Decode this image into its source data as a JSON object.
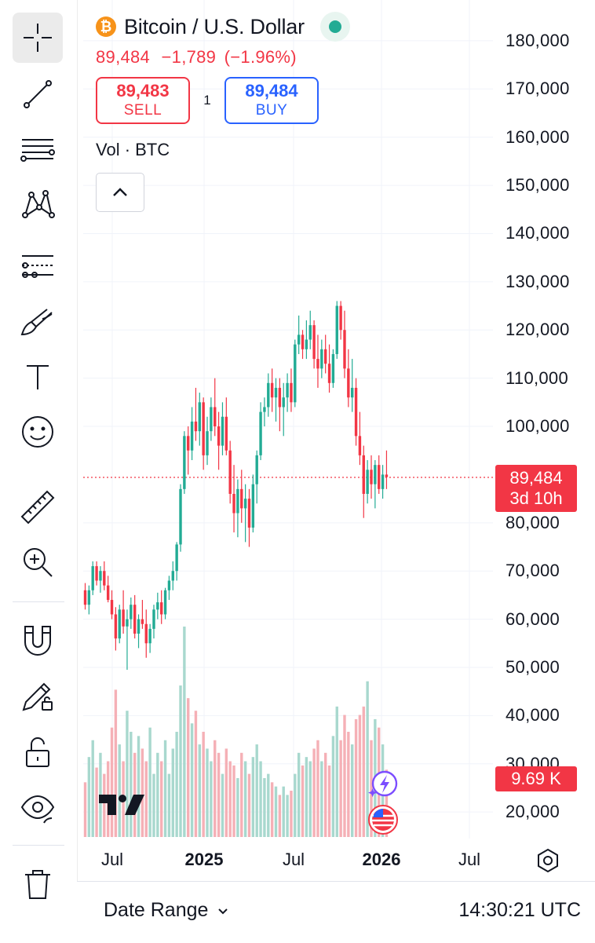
{
  "symbol": {
    "title": "Bitcoin / U.S. Dollar",
    "icon": "bitcoin-icon",
    "icon_glyph": "₿",
    "last_price": "89,484",
    "change": "−1,789",
    "change_pct": "(−1.96%)",
    "market_status": "open"
  },
  "trade": {
    "sell_price": "89,483",
    "sell_label": "SELL",
    "spread": "1",
    "buy_price": "89,484",
    "buy_label": "BUY"
  },
  "indicator": {
    "legend": "Vol · BTC"
  },
  "price_label": {
    "price": "89,484",
    "countdown": "3d 10h"
  },
  "volume_label": "9.69 K",
  "bottom_bar": {
    "date_range": "Date Range",
    "clock": "14:30:21 UTC"
  },
  "toolbar": {
    "tools": [
      "crosshair",
      "trend-line",
      "fib-retracement",
      "xabcd-pattern",
      "long-position",
      "brush",
      "text",
      "emoji",
      "ruler",
      "zoom-in",
      "magnet",
      "lock-drawings",
      "lock-all",
      "hide-drawings",
      "remove-drawings"
    ]
  },
  "colors": {
    "up": "#22ab94",
    "down": "#f23645",
    "buy": "#2962ff",
    "volume_up": "#a8d8ce",
    "volume_down": "#f5b0b6",
    "accent_purple": "#7c4dff"
  },
  "chart_data": {
    "type": "candlestick",
    "interval": "1W",
    "price_scale": {
      "ticks": [
        "180,000",
        "170,000",
        "160,000",
        "150,000",
        "140,000",
        "130,000",
        "120,000",
        "110,000",
        "100,000",
        "80,000",
        "70,000",
        "60,000",
        "50,000",
        "40,000",
        "30,000",
        "20,000"
      ],
      "range": [
        16000,
        183000
      ]
    },
    "time_axis": {
      "labels": [
        {
          "text": "Jul",
          "bold": false
        },
        {
          "text": "2025",
          "bold": true
        },
        {
          "text": "Jul",
          "bold": false
        },
        {
          "text": "2026",
          "bold": true
        },
        {
          "text": "Jul",
          "bold": false
        }
      ]
    },
    "last_price_line": 89484,
    "ohlc": [
      [
        66000,
        67500,
        62000,
        63000
      ],
      [
        63000,
        67000,
        61000,
        66000
      ],
      [
        66000,
        72000,
        65000,
        71000
      ],
      [
        71000,
        72000,
        67000,
        68000
      ],
      [
        68000,
        71000,
        65500,
        70000
      ],
      [
        70000,
        72000,
        66000,
        67000
      ],
      [
        67000,
        69000,
        63500,
        64000
      ],
      [
        64000,
        66000,
        60000,
        61000
      ],
      [
        61000,
        62500,
        53500,
        56000
      ],
      [
        56000,
        63000,
        55000,
        62000
      ],
      [
        62000,
        66000,
        57000,
        58500
      ],
      [
        58500,
        62000,
        49500,
        60000
      ],
      [
        60000,
        64500,
        58000,
        63000
      ],
      [
        63000,
        65000,
        56000,
        57000
      ],
      [
        57000,
        61000,
        54000,
        60000
      ],
      [
        60000,
        64000,
        58000,
        59000
      ],
      [
        59000,
        62000,
        52000,
        55000
      ],
      [
        55000,
        59000,
        53000,
        58000
      ],
      [
        58000,
        63000,
        56000,
        62000
      ],
      [
        62000,
        65500,
        60000,
        63500
      ],
      [
        63500,
        66000,
        59000,
        61000
      ],
      [
        61000,
        66500,
        60000,
        66000
      ],
      [
        66000,
        69000,
        64000,
        68000
      ],
      [
        68000,
        72000,
        66000,
        70000
      ],
      [
        70000,
        76000,
        68000,
        75500
      ],
      [
        75500,
        88000,
        74000,
        87000
      ],
      [
        87000,
        99000,
        86000,
        98000
      ],
      [
        98000,
        100000,
        90000,
        95000
      ],
      [
        95000,
        104000,
        93000,
        101000
      ],
      [
        101000,
        108000,
        97000,
        99000
      ],
      [
        99000,
        107000,
        96000,
        105000
      ],
      [
        105000,
        106000,
        91000,
        94000
      ],
      [
        94000,
        102000,
        92000,
        99000
      ],
      [
        99000,
        106000,
        97000,
        104000
      ],
      [
        104000,
        110000,
        98000,
        100000
      ],
      [
        100000,
        103000,
        91000,
        96000
      ],
      [
        96000,
        105000,
        94000,
        102000
      ],
      [
        102000,
        106000,
        94000,
        95000
      ],
      [
        95000,
        97000,
        84000,
        86000
      ],
      [
        86000,
        92000,
        78000,
        82000
      ],
      [
        82000,
        89000,
        77000,
        87000
      ],
      [
        87000,
        91000,
        80000,
        83000
      ],
      [
        83000,
        88000,
        76000,
        85000
      ],
      [
        85000,
        87000,
        75000,
        79000
      ],
      [
        79000,
        90000,
        78000,
        88000
      ],
      [
        88000,
        95000,
        84000,
        94000
      ],
      [
        94000,
        105000,
        93000,
        103000
      ],
      [
        103000,
        106000,
        100000,
        104000
      ],
      [
        104000,
        111000,
        102000,
        109000
      ],
      [
        109000,
        112000,
        103000,
        106000
      ],
      [
        106000,
        110000,
        101000,
        108000
      ],
      [
        108000,
        110000,
        99000,
        104000
      ],
      [
        104000,
        109000,
        98000,
        106000
      ],
      [
        106000,
        111000,
        103000,
        109000
      ],
      [
        109000,
        112000,
        103000,
        105000
      ],
      [
        105000,
        118000,
        104000,
        117000
      ],
      [
        117000,
        123000,
        115000,
        119000
      ],
      [
        119000,
        120000,
        114000,
        116000
      ],
      [
        116000,
        122000,
        114000,
        118000
      ],
      [
        118000,
        124000,
        116000,
        121000
      ],
      [
        121000,
        122000,
        112000,
        114000
      ],
      [
        114000,
        119000,
        108000,
        112000
      ],
      [
        112000,
        118000,
        110000,
        116000
      ],
      [
        116000,
        119000,
        111000,
        113000
      ],
      [
        113000,
        117000,
        107000,
        109000
      ],
      [
        109000,
        116000,
        108000,
        115000
      ],
      [
        115000,
        126000,
        114000,
        125000
      ],
      [
        125000,
        126000,
        118000,
        120000
      ],
      [
        120000,
        124000,
        110000,
        112000
      ],
      [
        112000,
        116000,
        104000,
        106000
      ],
      [
        106000,
        114000,
        103000,
        108000
      ],
      [
        108000,
        110000,
        96000,
        98000
      ],
      [
        98000,
        103000,
        92000,
        94000
      ],
      [
        94000,
        96000,
        81000,
        86000
      ],
      [
        86000,
        93000,
        84000,
        91000
      ],
      [
        91000,
        94000,
        85000,
        88000
      ],
      [
        88000,
        93000,
        83000,
        92000
      ],
      [
        92000,
        94000,
        86000,
        87000
      ],
      [
        87000,
        92000,
        85000,
        90000
      ],
      [
        90000,
        95000,
        87000,
        89484
      ]
    ],
    "volume_rel": [
      0.26,
      0.38,
      0.46,
      0.33,
      0.4,
      0.3,
      0.36,
      0.52,
      0.7,
      0.44,
      0.36,
      0.6,
      0.5,
      0.4,
      0.48,
      0.42,
      0.36,
      0.52,
      0.3,
      0.4,
      0.36,
      0.46,
      0.3,
      0.42,
      0.5,
      0.72,
      1.0,
      0.66,
      0.54,
      0.6,
      0.44,
      0.5,
      0.42,
      0.36,
      0.46,
      0.4,
      0.3,
      0.42,
      0.36,
      0.34,
      0.28,
      0.4,
      0.36,
      0.3,
      0.38,
      0.44,
      0.36,
      0.28,
      0.3,
      0.26,
      0.24,
      0.2,
      0.24,
      0.2,
      0.22,
      0.3,
      0.4,
      0.34,
      0.38,
      0.36,
      0.42,
      0.46,
      0.36,
      0.4,
      0.34,
      0.48,
      0.62,
      0.46,
      0.58,
      0.5,
      0.44,
      0.56,
      0.58,
      0.62,
      0.74,
      0.46,
      0.56,
      0.52,
      0.44,
      0.32
    ]
  }
}
